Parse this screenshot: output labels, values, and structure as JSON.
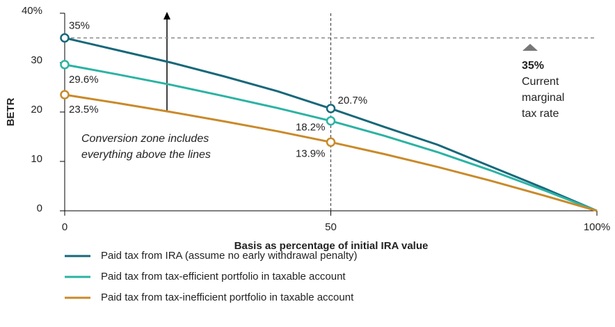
{
  "chart_data": {
    "type": "line",
    "x": [
      0,
      10,
      20,
      30,
      40,
      50,
      60,
      70,
      80,
      90,
      100
    ],
    "series": [
      {
        "name": "Paid tax from IRA (assume no early withdrawal penalty)",
        "color": "#17687a",
        "values": [
          35,
          32.5,
          30,
          27.2,
          24.2,
          20.7,
          17,
          13.4,
          9,
          4.6,
          0
        ],
        "value_labels": [
          "35%",
          null,
          null,
          null,
          null,
          "20.7%",
          null,
          null,
          null,
          null,
          null
        ]
      },
      {
        "name": "Paid tax from tax-efficient portfolio in taxable account",
        "color": "#2bb3a3",
        "values": [
          29.6,
          27.6,
          25.5,
          23.2,
          20.8,
          18.2,
          15.2,
          11.9,
          8.2,
          4.2,
          0
        ],
        "value_labels": [
          "29.6%",
          null,
          null,
          null,
          null,
          "18.2%",
          null,
          null,
          null,
          null,
          null
        ]
      },
      {
        "name": "Paid tax from tax-inefficient portfolio in taxable account",
        "color": "#c98a2a",
        "values": [
          23.5,
          21.8,
          20,
          18.1,
          16.1,
          13.9,
          11.5,
          8.9,
          6.1,
          3.1,
          0
        ],
        "value_labels": [
          "23.5%",
          null,
          null,
          null,
          null,
          "13.9%",
          null,
          null,
          null,
          null,
          null
        ]
      }
    ],
    "xlim": [
      0,
      100
    ],
    "ylim": [
      0,
      40
    ],
    "xticks": [
      0,
      50,
      {
        "value": 100,
        "label": "100%"
      }
    ],
    "yticks": [
      0,
      10,
      20,
      30,
      {
        "value": 40,
        "label": "40%"
      }
    ],
    "x_label": "Basis as percentage of initial IRA value",
    "y_label": "BETR",
    "reference_line": {
      "value": 35,
      "label": "35%",
      "text": [
        "Current",
        "marginal",
        "tax rate"
      ]
    },
    "vline": 50,
    "annotation": [
      "Conversion zone includes",
      "everything above the lines"
    ]
  }
}
